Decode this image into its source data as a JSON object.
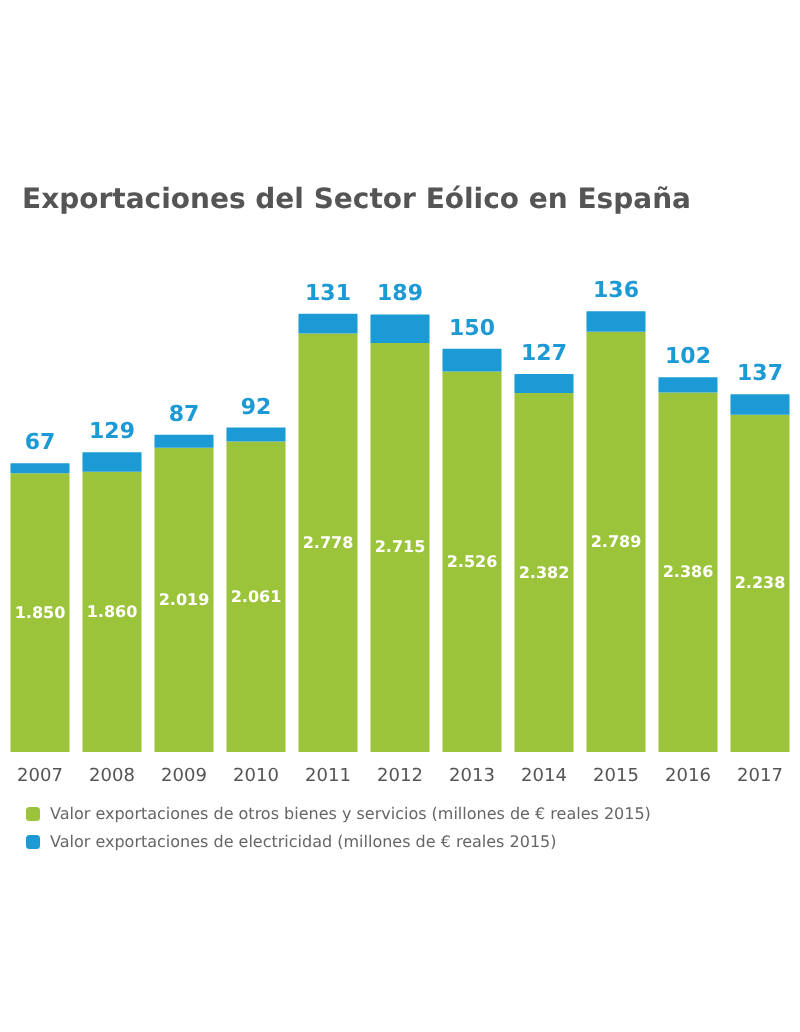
{
  "chart_data": {
    "type": "bar",
    "title": "Exportaciones del Sector Eólico en España",
    "stacked": true,
    "legend": "bottom",
    "categories": [
      "2007",
      "2008",
      "2009",
      "2010",
      "2011",
      "2012",
      "2013",
      "2014",
      "2015",
      "2016",
      "2017"
    ],
    "series": [
      {
        "name": "Valor exportaciones de otros bienes y servicios (millones de € reales 2015)",
        "color": "#9cc43b",
        "values": [
          1850,
          1860,
          2019,
          2061,
          2778,
          2715,
          2526,
          2382,
          2789,
          2386,
          2238
        ],
        "value_labels": [
          "1.850",
          "1.860",
          "2.019",
          "2.061",
          "2.778",
          "2.715",
          "2.526",
          "2.382",
          "2.789",
          "2.386",
          "2.238"
        ]
      },
      {
        "name": "Valor exportaciones de electricidad (millones de € reales 2015)",
        "color": "#1c9ad6",
        "values": [
          67,
          129,
          87,
          92,
          131,
          189,
          150,
          127,
          136,
          102,
          137
        ],
        "value_labels": [
          "67",
          "129",
          "87",
          "92",
          "131",
          "189",
          "150",
          "127",
          "136",
          "102",
          "137"
        ]
      }
    ]
  }
}
